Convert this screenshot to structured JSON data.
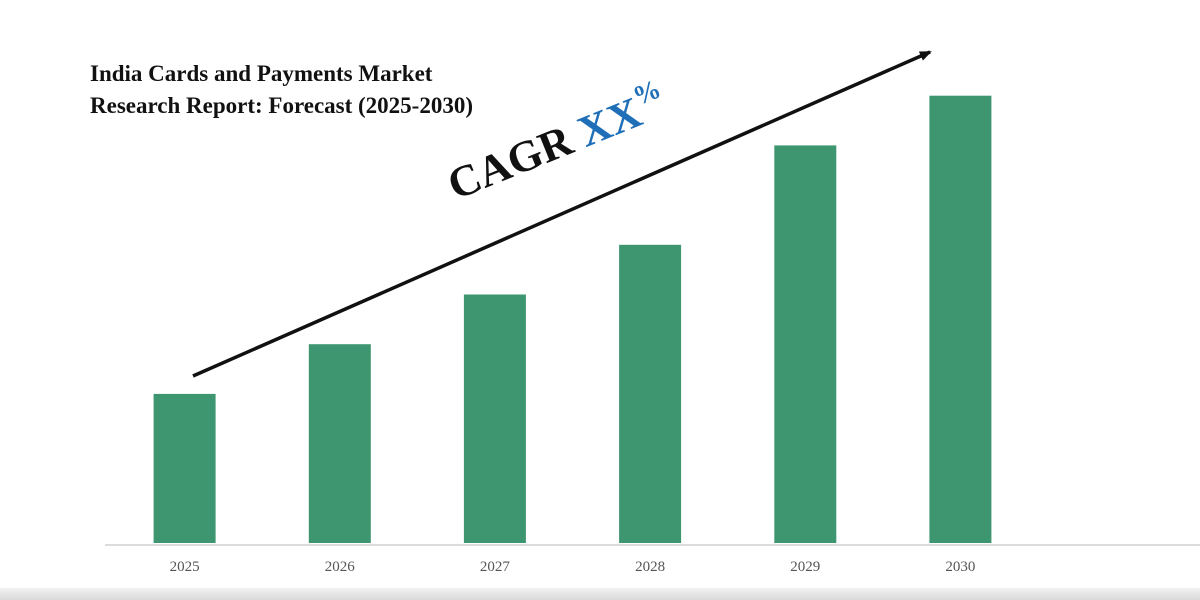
{
  "chart_data": {
    "type": "bar",
    "title_lines": [
      "India Cards and Payments Market",
      "Research Report: Forecast (2025-2030)"
    ],
    "categories": [
      "2025",
      "2026",
      "2027",
      "2028",
      "2029",
      "2030"
    ],
    "values": [
      30,
      40,
      50,
      60,
      80,
      90
    ],
    "ylim": [
      0,
      100
    ],
    "xlabel": "",
    "ylabel": "",
    "grid": false,
    "legend": "none",
    "bar_color": "#3e9670",
    "annotation": {
      "prefix": "CAGR",
      "value": "XX",
      "suffix": "%",
      "value_color": "#1f6fb8"
    }
  }
}
